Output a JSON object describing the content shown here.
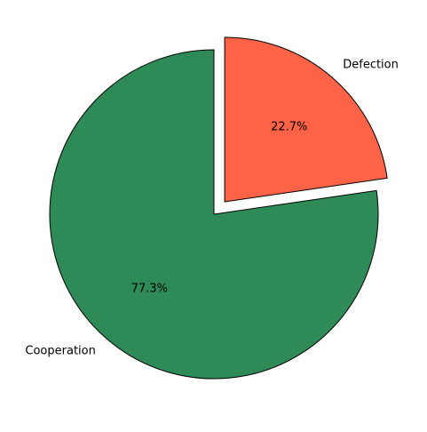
{
  "chart_data": {
    "type": "pie",
    "title": "",
    "slices": [
      {
        "label": "Cooperation",
        "value": 77.3,
        "pct_label": "77.3%",
        "color": "#2E8B57",
        "exploded": false
      },
      {
        "label": "Defection",
        "value": 22.7,
        "pct_label": "22.7%",
        "color": "#FF6347",
        "exploded": true
      }
    ],
    "start_angle": 90,
    "direction": "counterclockwise",
    "edge_color": "#000000",
    "legend": "none"
  }
}
